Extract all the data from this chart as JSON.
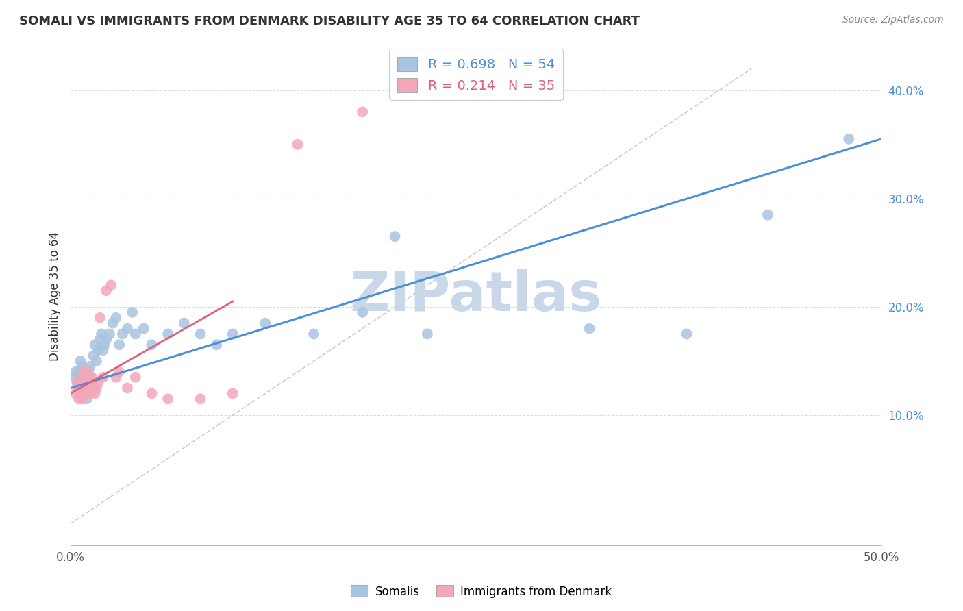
{
  "title": "SOMALI VS IMMIGRANTS FROM DENMARK DISABILITY AGE 35 TO 64 CORRELATION CHART",
  "source": "Source: ZipAtlas.com",
  "ylabel": "Disability Age 35 to 64",
  "xlim": [
    0.0,
    0.5
  ],
  "ylim": [
    -0.02,
    0.44
  ],
  "somali_R": 0.698,
  "somali_N": 54,
  "denmark_R": 0.214,
  "denmark_N": 35,
  "somali_color": "#a8c4e0",
  "denmark_color": "#f4a7b9",
  "somali_line_color": "#4a90d9",
  "denmark_line_color": "#e0607a",
  "diagonal_color": "#cccccc",
  "background_color": "#ffffff",
  "grid_color": "#dddddd",
  "watermark_color": "#c8d8e8",
  "blue_line_x": [
    0.0,
    0.5
  ],
  "blue_line_y": [
    0.125,
    0.355
  ],
  "pink_line_x": [
    0.0,
    0.1
  ],
  "pink_line_y": [
    0.12,
    0.205
  ],
  "somali_x": [
    0.002,
    0.003,
    0.004,
    0.005,
    0.005,
    0.006,
    0.006,
    0.007,
    0.007,
    0.008,
    0.008,
    0.009,
    0.009,
    0.01,
    0.01,
    0.011,
    0.011,
    0.012,
    0.012,
    0.013,
    0.013,
    0.014,
    0.015,
    0.016,
    0.017,
    0.018,
    0.019,
    0.02,
    0.021,
    0.022,
    0.024,
    0.026,
    0.028,
    0.03,
    0.032,
    0.035,
    0.038,
    0.04,
    0.045,
    0.05,
    0.06,
    0.07,
    0.08,
    0.09,
    0.1,
    0.12,
    0.15,
    0.18,
    0.2,
    0.22,
    0.32,
    0.38,
    0.43,
    0.48
  ],
  "somali_y": [
    0.135,
    0.14,
    0.13,
    0.125,
    0.14,
    0.12,
    0.15,
    0.13,
    0.145,
    0.125,
    0.14,
    0.12,
    0.135,
    0.13,
    0.115,
    0.14,
    0.12,
    0.135,
    0.145,
    0.13,
    0.125,
    0.155,
    0.165,
    0.15,
    0.16,
    0.17,
    0.175,
    0.16,
    0.165,
    0.17,
    0.175,
    0.185,
    0.19,
    0.165,
    0.175,
    0.18,
    0.195,
    0.175,
    0.18,
    0.165,
    0.175,
    0.185,
    0.175,
    0.165,
    0.175,
    0.185,
    0.175,
    0.195,
    0.265,
    0.175,
    0.18,
    0.175,
    0.285,
    0.355
  ],
  "denmark_x": [
    0.003,
    0.004,
    0.005,
    0.005,
    0.006,
    0.006,
    0.007,
    0.007,
    0.008,
    0.008,
    0.009,
    0.009,
    0.01,
    0.01,
    0.011,
    0.012,
    0.013,
    0.014,
    0.015,
    0.016,
    0.017,
    0.018,
    0.02,
    0.022,
    0.025,
    0.028,
    0.03,
    0.035,
    0.04,
    0.05,
    0.06,
    0.08,
    0.1,
    0.14,
    0.18
  ],
  "denmark_y": [
    0.12,
    0.13,
    0.115,
    0.125,
    0.12,
    0.13,
    0.115,
    0.135,
    0.125,
    0.14,
    0.12,
    0.13,
    0.125,
    0.14,
    0.135,
    0.12,
    0.135,
    0.125,
    0.12,
    0.125,
    0.13,
    0.19,
    0.135,
    0.215,
    0.22,
    0.135,
    0.14,
    0.125,
    0.135,
    0.12,
    0.115,
    0.115,
    0.12,
    0.35,
    0.38
  ]
}
